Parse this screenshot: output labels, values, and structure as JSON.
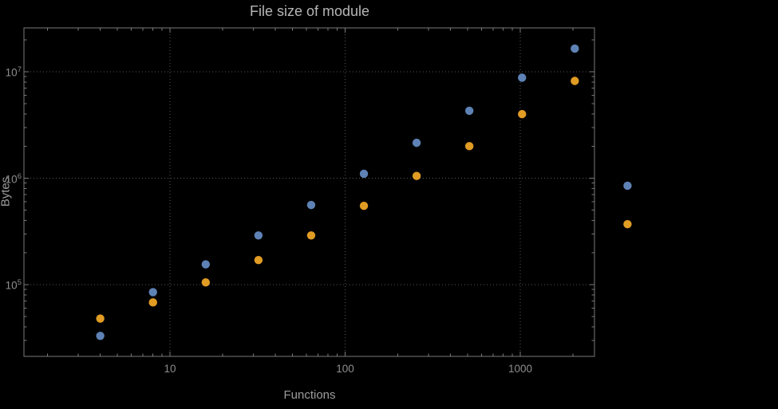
{
  "colors": {
    "background": "#000000",
    "frame": "#7a7a7a",
    "grid": "#565656",
    "title_text": "#b5b5b5",
    "axis_label_text": "#9c9c9c",
    "tick_label_text": "#8d8d8d",
    "series_blue": "#5e82b5",
    "series_orange": "#e19c24"
  },
  "chart_data": {
    "type": "scatter",
    "title": "File size of module",
    "xlabel": "Functions",
    "ylabel": "Bytes",
    "x_scale": "log",
    "y_scale": "log",
    "grid": "dotted",
    "legend": "none",
    "x_range": [
      1.5,
      2650
    ],
    "y_range": [
      21000,
      26000000
    ],
    "x_ticks": [
      {
        "value": 10,
        "label": "10"
      },
      {
        "value": 100,
        "label": "100"
      },
      {
        "value": 1000,
        "label": "1000"
      }
    ],
    "y_ticks": [
      {
        "value": 100000,
        "base": "10",
        "exp": "5"
      },
      {
        "value": 1000000,
        "base": "10",
        "exp": "6"
      },
      {
        "value": 10000000,
        "base": "10",
        "exp": "7"
      }
    ],
    "series": [
      {
        "name": "series-blue",
        "color": "#5e82b5",
        "x": [
          4,
          8,
          16,
          32,
          64,
          128,
          256,
          512,
          1024,
          2048,
          4096
        ],
        "y": [
          33000,
          85000,
          155000,
          290000,
          560000,
          1100000,
          2150000,
          4300000,
          8800000,
          16500000,
          850000
        ]
      },
      {
        "name": "series-orange",
        "color": "#e19c24",
        "x": [
          4,
          8,
          16,
          32,
          64,
          128,
          256,
          512,
          1024,
          2048,
          4096
        ],
        "y": [
          48000,
          68000,
          105000,
          170000,
          290000,
          550000,
          1050000,
          2000000,
          4000000,
          8200000,
          370000
        ]
      }
    ]
  }
}
